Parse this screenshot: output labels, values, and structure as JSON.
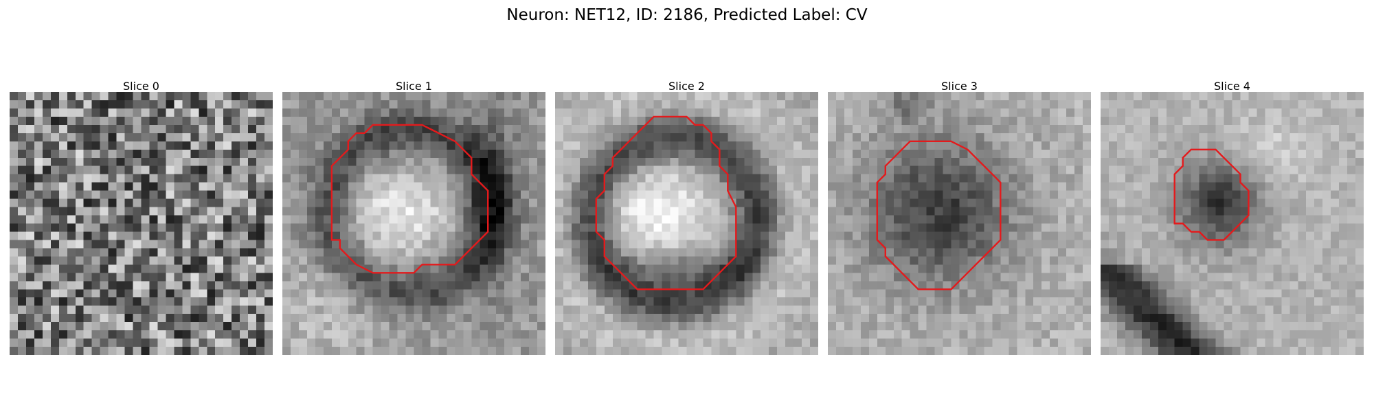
{
  "figure": {
    "title": "Neuron: NET12, ID: 2186, Predicted Label: CV"
  },
  "contour_color": "#e41a1c",
  "panels": [
    {
      "title": "Slice 0",
      "image": "noise-grayscale-microscopy-patch",
      "has_contour": false,
      "description_kind": "mottled gray noise"
    },
    {
      "title": "Slice 1",
      "image": "bright-soma-with-dark-ring",
      "has_contour": true
    },
    {
      "title": "Slice 2",
      "image": "bright-soma-with-dark-ring",
      "has_contour": true
    },
    {
      "title": "Slice 3",
      "image": "dark-round-soma",
      "has_contour": true
    },
    {
      "title": "Slice 4",
      "image": "small-dark-soma-with-diagonal-streak",
      "has_contour": true
    }
  ]
}
